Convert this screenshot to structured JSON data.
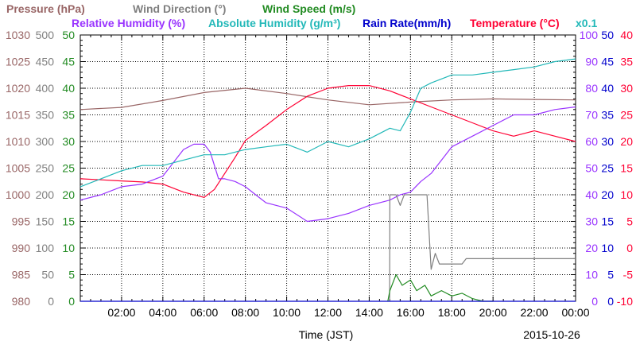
{
  "chart_data": {
    "type": "line",
    "date_label": "2015-10-26",
    "xlabel": "Time (JST)",
    "x_range_hours": [
      0,
      24
    ],
    "x_ticks": [
      "02:00",
      "04:00",
      "06:00",
      "08:00",
      "10:00",
      "12:00",
      "14:00",
      "16:00",
      "18:00",
      "20:00",
      "22:00",
      "00:00"
    ],
    "grid": true,
    "legend_top": [
      {
        "text": "Pressure (hPa)",
        "color": "#996666"
      },
      {
        "text": "Wind Direction (°)",
        "color": "#808080"
      },
      {
        "text": "Wind Speed (m/s)",
        "color": "#228b22"
      }
    ],
    "legend_second": [
      {
        "text": "Relative Humidity (%)",
        "color": "#9933ff"
      },
      {
        "text": "Absolute Humidity (g/m³)",
        "color": "#22b8b8"
      },
      {
        "text": "Rain Rate(mm/h)",
        "color": "#0000cc"
      },
      {
        "text": "Temperature (°C)",
        "color": "#ff0033"
      }
    ],
    "abs_humidity_scale_note": "x0.1",
    "axes": {
      "pressure": {
        "color": "#996666",
        "range": [
          980,
          1030
        ],
        "ticks": [
          "1030",
          "1025",
          "1020",
          "1015",
          "1010",
          "1005",
          "1000",
          "995",
          "990",
          "985",
          "980"
        ]
      },
      "wind_direction": {
        "color": "#808080",
        "range": [
          0,
          500
        ],
        "ticks": [
          "500",
          "450",
          "400",
          "350",
          "300",
          "250",
          "200",
          "150",
          "100",
          "50",
          "0"
        ]
      },
      "wind_speed": {
        "color": "#228b22",
        "range": [
          0,
          50
        ],
        "ticks": [
          "50",
          "45",
          "40",
          "35",
          "30",
          "25",
          "20",
          "15",
          "10",
          "5",
          "0"
        ]
      },
      "humidity": {
        "color": "#9933ff",
        "range": [
          0,
          100
        ],
        "ticks": [
          "100",
          "90",
          "80",
          "70",
          "60",
          "50",
          "40",
          "30",
          "20",
          "10",
          "0"
        ]
      },
      "rain_rate": {
        "color": "#0000cc",
        "range": [
          0,
          50
        ],
        "ticks": [
          "50",
          "45",
          "40",
          "35",
          "30",
          "25",
          "20",
          "15",
          "10",
          "5",
          "0"
        ]
      },
      "temperature": {
        "color": "#ff0033",
        "range": [
          -10,
          40
        ],
        "ticks": [
          "40",
          "35",
          "30",
          "25",
          "20",
          "15",
          "10",
          "5",
          "0",
          "-5",
          "-10"
        ]
      }
    },
    "series": [
      {
        "name": "Pressure (hPa)",
        "color": "#996666",
        "scale": "pressure",
        "x": [
          0,
          2,
          4,
          6,
          8,
          10,
          12,
          14,
          16,
          18,
          20,
          22,
          24
        ],
        "y": [
          1016,
          1016.4,
          1017.7,
          1019.2,
          1020,
          1019,
          1017.8,
          1016.9,
          1017.4,
          1017.8,
          1018,
          1017.9,
          1017.8
        ]
      },
      {
        "name": "Temperature (°C)",
        "color": "#ff0033",
        "scale": "temperature",
        "x": [
          0,
          1,
          2,
          3,
          4,
          5,
          6,
          6.5,
          7,
          7.5,
          8,
          9,
          10,
          11,
          12,
          13,
          14,
          15,
          16,
          17,
          18,
          19,
          20,
          21,
          22,
          23,
          24
        ],
        "y": [
          13,
          12.8,
          12.6,
          12.4,
          12,
          10.5,
          9.5,
          11,
          14,
          17,
          20.2,
          23,
          26,
          28.5,
          30,
          30.5,
          30.5,
          29.5,
          28,
          26.5,
          25,
          23.5,
          22,
          21,
          22,
          21,
          20
        ]
      },
      {
        "name": "Relative Humidity (%)",
        "color": "#9933ff",
        "scale": "humidity",
        "x": [
          0,
          1,
          2,
          3,
          4,
          5,
          5.5,
          6,
          6.3,
          6.7,
          7,
          7.5,
          8,
          8.5,
          9,
          10,
          11,
          12,
          13,
          14,
          14.5,
          15,
          15.5,
          16,
          16.5,
          17,
          18,
          19,
          20,
          21,
          22,
          23,
          24
        ],
        "y": [
          38,
          40,
          43,
          44,
          47,
          57,
          59,
          59,
          56,
          46,
          46,
          45,
          43,
          40,
          37,
          35,
          30,
          31,
          33,
          36,
          37,
          38,
          40,
          41,
          45,
          48,
          58,
          62,
          66,
          70,
          70,
          72,
          73
        ]
      },
      {
        "name": "Absolute Humidity (g/m³)",
        "color": "#22b8b8",
        "scale": "humidity",
        "x": [
          0,
          1,
          2,
          3,
          4,
          5,
          6,
          7,
          8,
          9,
          10,
          11,
          12,
          13,
          14,
          15,
          15.5,
          16,
          16.5,
          17,
          18,
          19,
          20,
          21,
          22,
          23,
          24
        ],
        "y": [
          43,
          46,
          49,
          51,
          51,
          53,
          55,
          55,
          57,
          58,
          59,
          56,
          60,
          58,
          61,
          65,
          64,
          71,
          80,
          82,
          85,
          85,
          86,
          87,
          88,
          90,
          91
        ]
      },
      {
        "name": "Wind Direction (°)",
        "color": "#808080",
        "scale": "wind_direction",
        "x": [
          14.99,
          15,
          15.3,
          15.5,
          15.7,
          16,
          16.5,
          16.8,
          17,
          17.2,
          17.4,
          18,
          18.5,
          18.7,
          19,
          19.5,
          20,
          24
        ],
        "y": [
          0,
          200,
          200,
          180,
          200,
          200,
          200,
          200,
          60,
          90,
          70,
          70,
          70,
          80,
          80,
          80,
          80,
          80
        ]
      },
      {
        "name": "Wind Speed (m/s)",
        "color": "#228b22",
        "scale": "wind_speed",
        "x": [
          14.9,
          15,
          15.3,
          15.6,
          16,
          16.3,
          16.7,
          17,
          17.5,
          18,
          18.5,
          19,
          19.5,
          20
        ],
        "y": [
          0,
          2,
          5,
          3,
          4,
          2,
          3,
          1,
          2,
          1,
          1.5,
          0.5,
          0,
          0
        ]
      },
      {
        "name": "Rain Rate(mm/h)",
        "color": "#0000cc",
        "scale": "rain_rate",
        "x": [
          0,
          24
        ],
        "y": [
          0,
          0
        ]
      }
    ]
  }
}
